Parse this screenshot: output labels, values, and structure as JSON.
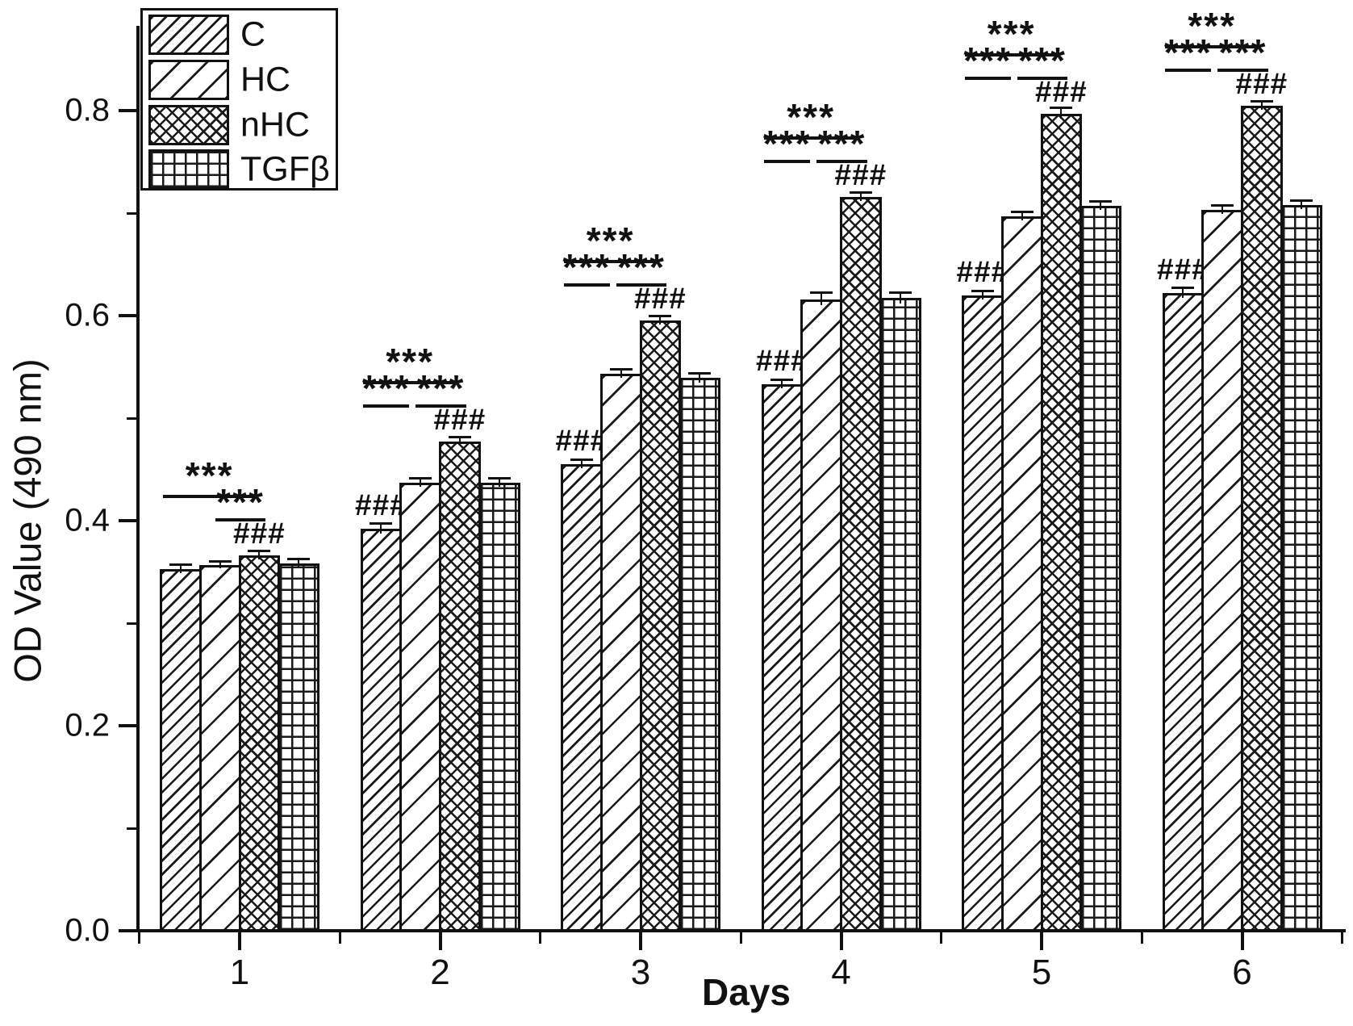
{
  "figure": {
    "background": "#ffffff",
    "ink": "#111111"
  },
  "legend": {
    "items": [
      {
        "label": "C",
        "pattern": "diag-dense"
      },
      {
        "label": "HC",
        "pattern": "diag-sparse"
      },
      {
        "label": "nHC",
        "pattern": "crosshatch"
      },
      {
        "label": "TGFβ",
        "pattern": "grid"
      }
    ]
  },
  "chart_data": {
    "type": "bar",
    "title": "",
    "xlabel": "Days",
    "ylabel": "OD Value (490 nm)",
    "categories": [
      1,
      2,
      3,
      4,
      5,
      6
    ],
    "series": [
      {
        "name": "C",
        "pattern": "diag-dense",
        "values": [
          0.353,
          0.392,
          0.455,
          0.533,
          0.62,
          0.622
        ],
        "errors": [
          0.004,
          0.005,
          0.004,
          0.004,
          0.004,
          0.005
        ]
      },
      {
        "name": "HC",
        "pattern": "diag-sparse",
        "values": [
          0.357,
          0.437,
          0.543,
          0.616,
          0.697,
          0.703
        ],
        "errors": [
          0.003,
          0.004,
          0.004,
          0.006,
          0.004,
          0.004
        ]
      },
      {
        "name": "nHC",
        "pattern": "crosshatch",
        "values": [
          0.366,
          0.477,
          0.595,
          0.716,
          0.797,
          0.805
        ],
        "errors": [
          0.004,
          0.004,
          0.004,
          0.004,
          0.005,
          0.004
        ]
      },
      {
        "name": "TGFβ",
        "pattern": "grid",
        "values": [
          0.358,
          0.437,
          0.539,
          0.617,
          0.707,
          0.708
        ],
        "errors": [
          0.004,
          0.004,
          0.004,
          0.005,
          0.004,
          0.004
        ]
      }
    ],
    "ylim": [
      0.0,
      0.88
    ],
    "yticks": [
      {
        "v": 0.0,
        "label": "0.0"
      },
      {
        "v": 0.2,
        "label": "0.2"
      },
      {
        "v": 0.4,
        "label": "0.4"
      },
      {
        "v": 0.6,
        "label": "0.6"
      },
      {
        "v": 0.8,
        "label": "0.8"
      }
    ],
    "yminor": [
      0.1,
      0.3,
      0.5,
      0.7
    ],
    "xminor": [
      0.5,
      1.5,
      2.5,
      3.5,
      4.5,
      5.5,
      6.5
    ],
    "grid": false,
    "legend_position": "top-left",
    "annotations": {
      "days": [
        {
          "day": 1,
          "hash_on_c": false,
          "hash_on_nhc": true,
          "hash_label": "###",
          "brackets": [
            {
              "from": "C",
              "to": "nHC",
              "level": "long",
              "label": "***"
            },
            {
              "from": "HC",
              "to": "nHC",
              "level": "short",
              "label": "***"
            }
          ]
        },
        {
          "day": 2,
          "hash_on_c": true,
          "hash_on_nhc": true,
          "hash_label": "###",
          "brackets": [
            {
              "from": "C",
              "to": "nHC",
              "level": "long",
              "label": "***"
            },
            {
              "from": "C",
              "to": "HC",
              "level": "short",
              "label": "***"
            },
            {
              "from": "HC",
              "to": "nHC",
              "level": "short",
              "label": "***"
            }
          ]
        },
        {
          "day": 3,
          "hash_on_c": true,
          "hash_on_nhc": true,
          "hash_label": "###",
          "brackets": [
            {
              "from": "C",
              "to": "nHC",
              "level": "long",
              "label": "***"
            },
            {
              "from": "C",
              "to": "HC",
              "level": "short",
              "label": "***"
            },
            {
              "from": "HC",
              "to": "nHC",
              "level": "short",
              "label": "***"
            }
          ]
        },
        {
          "day": 4,
          "hash_on_c": true,
          "hash_on_nhc": true,
          "hash_label": "###",
          "brackets": [
            {
              "from": "C",
              "to": "nHC",
              "level": "long",
              "label": "***"
            },
            {
              "from": "C",
              "to": "HC",
              "level": "short",
              "label": "***"
            },
            {
              "from": "HC",
              "to": "nHC",
              "level": "short",
              "label": "***"
            }
          ]
        },
        {
          "day": 5,
          "hash_on_c": true,
          "hash_on_nhc": true,
          "hash_label": "###",
          "brackets": [
            {
              "from": "C",
              "to": "nHC",
              "level": "long",
              "label": "***"
            },
            {
              "from": "C",
              "to": "HC",
              "level": "short",
              "label": "***"
            },
            {
              "from": "HC",
              "to": "nHC",
              "level": "short",
              "label": "***"
            }
          ]
        },
        {
          "day": 6,
          "hash_on_c": true,
          "hash_on_nhc": true,
          "hash_label": "###",
          "brackets": [
            {
              "from": "C",
              "to": "nHC",
              "level": "long",
              "label": "***"
            },
            {
              "from": "C",
              "to": "HC",
              "level": "short",
              "label": "***"
            },
            {
              "from": "HC",
              "to": "nHC",
              "level": "short",
              "label": "***"
            }
          ]
        }
      ]
    }
  }
}
